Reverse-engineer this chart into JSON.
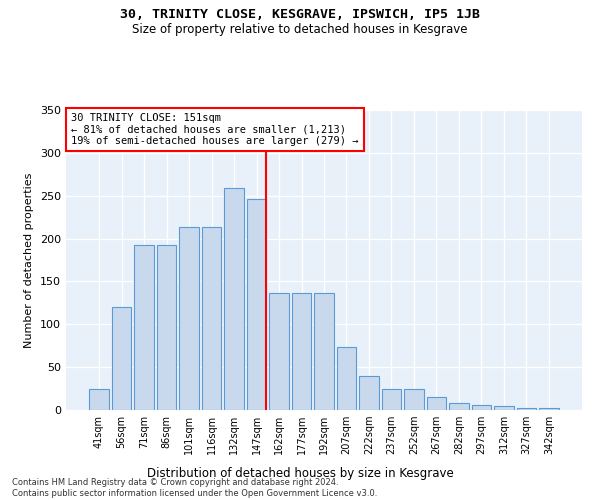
{
  "title": "30, TRINITY CLOSE, KESGRAVE, IPSWICH, IP5 1JB",
  "subtitle": "Size of property relative to detached houses in Kesgrave",
  "xlabel": "Distribution of detached houses by size in Kesgrave",
  "ylabel": "Number of detached properties",
  "categories": [
    "41sqm",
    "56sqm",
    "71sqm",
    "86sqm",
    "101sqm",
    "116sqm",
    "132sqm",
    "147sqm",
    "162sqm",
    "177sqm",
    "192sqm",
    "207sqm",
    "222sqm",
    "237sqm",
    "252sqm",
    "267sqm",
    "282sqm",
    "297sqm",
    "312sqm",
    "327sqm",
    "342sqm"
  ],
  "bar_values": [
    24,
    120,
    193,
    193,
    213,
    214,
    259,
    246,
    136,
    136,
    136,
    74,
    40,
    25,
    25,
    15,
    8,
    6,
    5,
    2,
    2
  ],
  "bar_color": "#c8d9ed",
  "bar_edge_color": "#5b9bd5",
  "annotation_label": "30 TRINITY CLOSE: 151sqm",
  "annotation_line2": "← 81% of detached houses are smaller (1,213)",
  "annotation_line3": "19% of semi-detached houses are larger (279) →",
  "annotation_box_facecolor": "white",
  "annotation_box_edgecolor": "red",
  "vline_color": "red",
  "ylim": [
    0,
    350
  ],
  "yticks": [
    0,
    50,
    100,
    150,
    200,
    250,
    300,
    350
  ],
  "background_color": "#e8f0fa",
  "grid_color": "white",
  "footer_line1": "Contains HM Land Registry data © Crown copyright and database right 2024.",
  "footer_line2": "Contains public sector information licensed under the Open Government Licence v3.0."
}
